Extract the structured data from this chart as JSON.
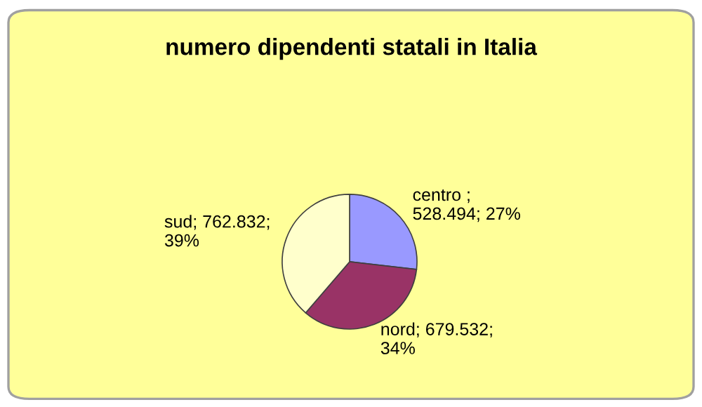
{
  "chart_data": {
    "type": "pie",
    "title": "numero dipendenti statali in Italia",
    "categories": [
      "centro",
      "nord",
      "sud"
    ],
    "values": [
      528.494,
      679.532,
      762.832
    ],
    "value_labels": [
      " ;\n528.494; 27%",
      "; 679.532;\n34%",
      "; 762.832;\n39%"
    ],
    "colors": [
      "#9999ff",
      "#993366",
      "#ffffcc"
    ],
    "legend": false
  }
}
